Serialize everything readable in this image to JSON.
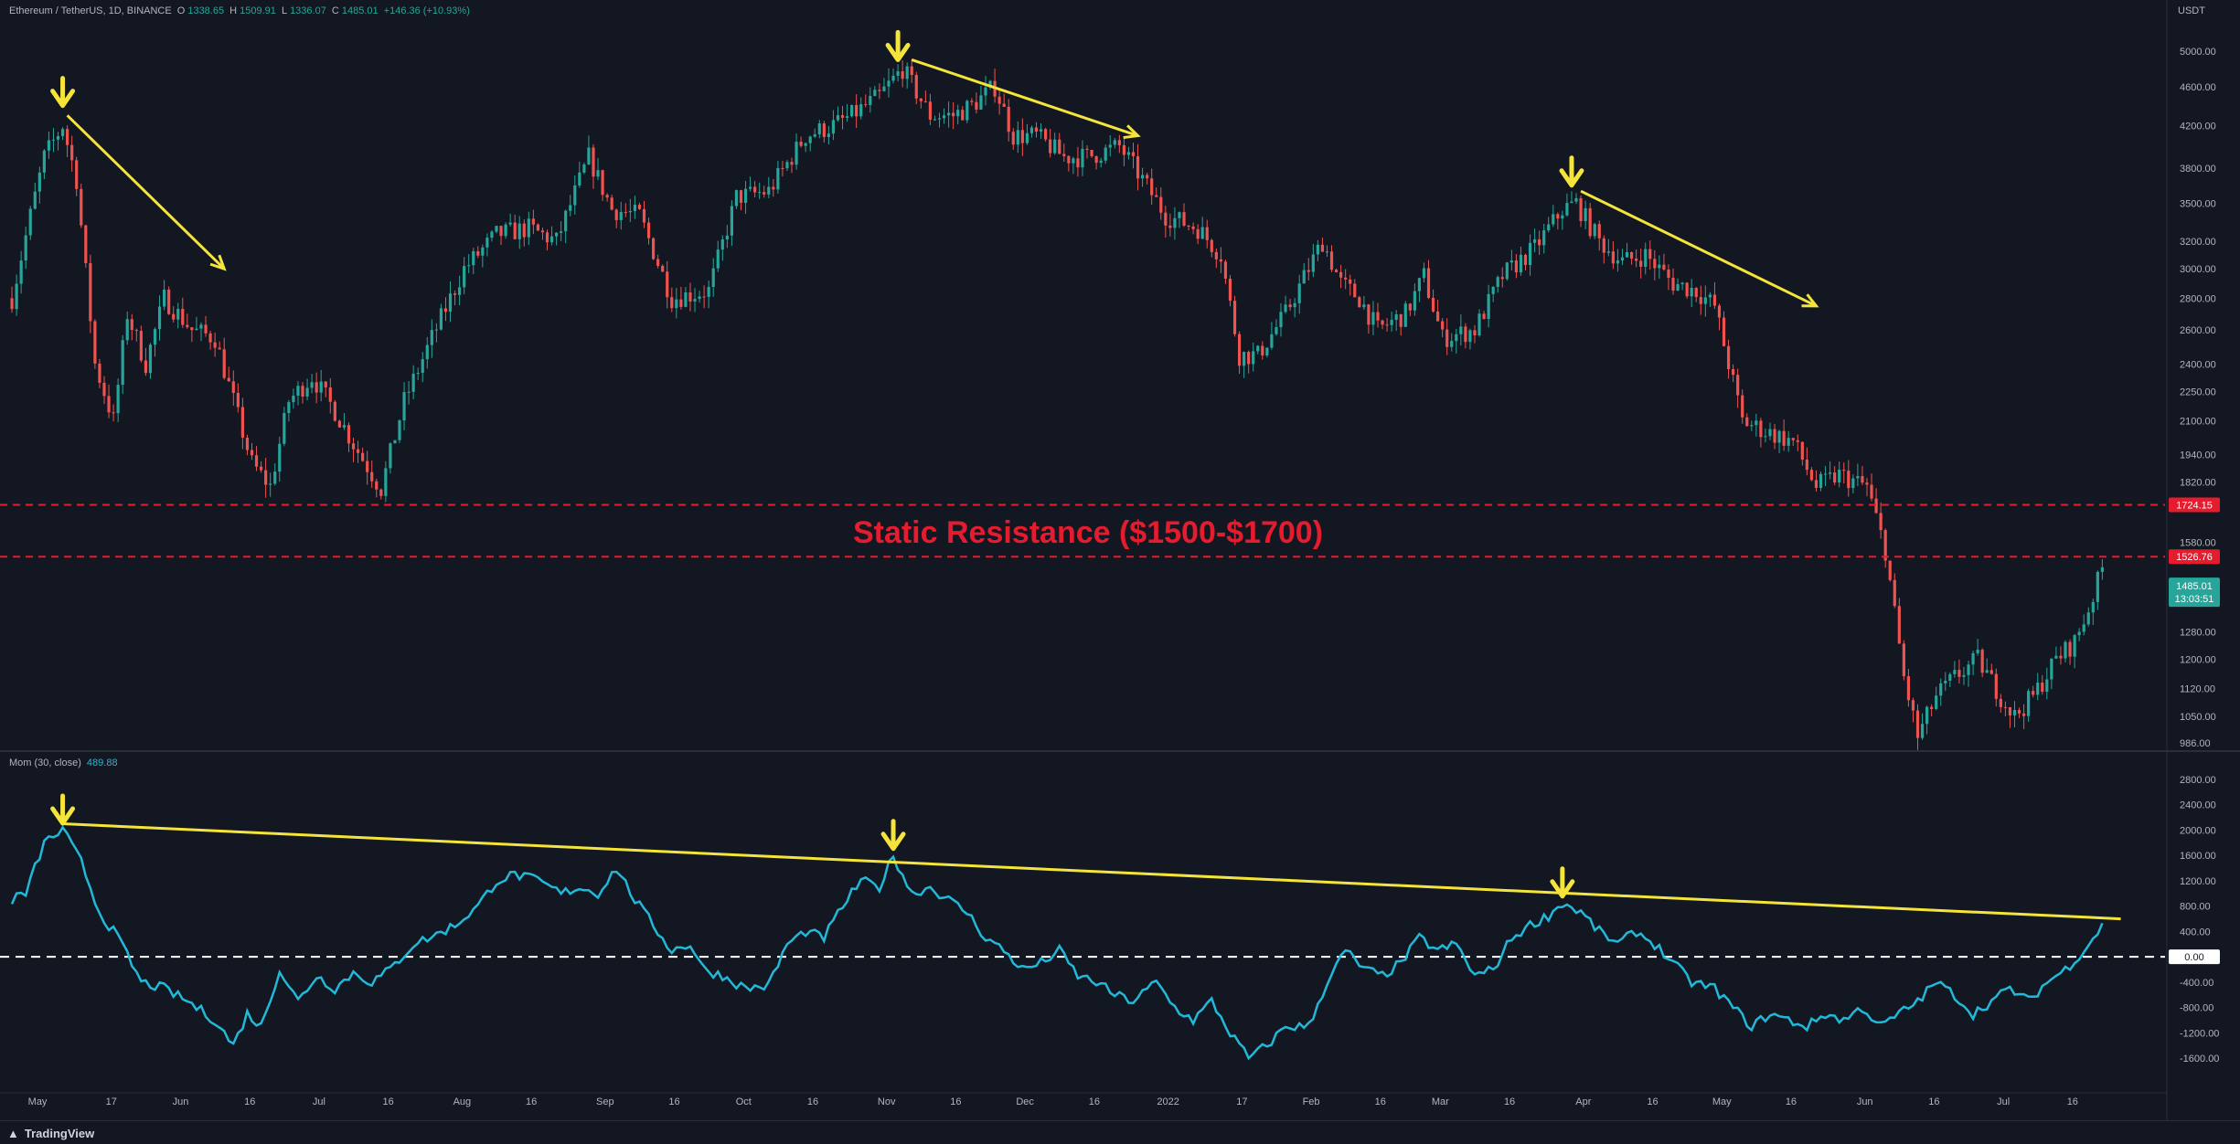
{
  "header": {
    "symbol": "Ethereum / TetherUS, 1D, BINANCE",
    "open_label": "O",
    "open": "1338.65",
    "high_label": "H",
    "high": "1509.91",
    "low_label": "L",
    "low": "1336.07",
    "close_label": "C",
    "close": "1485.01",
    "change": "+146.36 (+10.93%)"
  },
  "indicator": {
    "name": "Mom (30, close)",
    "value": "489.88"
  },
  "currency": "USDT",
  "annotation": {
    "text": "Static Resistance ($1500-$1700)"
  },
  "price_badges": {
    "r1": "1724.15",
    "r2": "1526.76",
    "last": "1485.01",
    "countdown": "13:03:51"
  },
  "mom_badge": "0.00",
  "brand": "TradingView",
  "colors": {
    "background": "#131722",
    "up": "#26a69a",
    "down": "#ef5350",
    "momentum": "#22b8d8",
    "trendline": "#f5e43a",
    "resistance": "#e41c2e"
  },
  "chart_data": [
    {
      "type": "candlestick",
      "title": "Ethereum / TetherUS, 1D, BINANCE",
      "ylabel": "USDT",
      "y_scale": "log",
      "ylim": [
        980,
        5000
      ],
      "y_ticks": [
        "5000.00",
        "4600.00",
        "4200.00",
        "3800.00",
        "3500.00",
        "3200.00",
        "3000.00",
        "2800.00",
        "2600.00",
        "2400.00",
        "2250.00",
        "2100.00",
        "1940.00",
        "1820.00",
        "1580.00",
        "1380.00",
        "1280.00",
        "1200.00",
        "1120.00",
        "1050.00",
        "986.00"
      ],
      "x_ticks": [
        "May",
        "17",
        "Jun",
        "16",
        "Jul",
        "16",
        "Aug",
        "16",
        "Sep",
        "16",
        "Oct",
        "16",
        "Nov",
        "16",
        "Dec",
        "16",
        "2022",
        "17",
        "Feb",
        "16",
        "Mar",
        "16",
        "Apr",
        "16",
        "May",
        "16",
        "Jun",
        "16",
        "Jul",
        "16"
      ],
      "path": [
        [
          "2021-05-01",
          2800
        ],
        [
          "2021-05-05",
          3400
        ],
        [
          "2021-05-08",
          3900
        ],
        [
          "2021-05-12",
          4200
        ],
        [
          "2021-05-15",
          3700
        ],
        [
          "2021-05-19",
          2400
        ],
        [
          "2021-05-23",
          2100
        ],
        [
          "2021-05-26",
          2700
        ],
        [
          "2021-05-30",
          2400
        ],
        [
          "2021-06-03",
          2800
        ],
        [
          "2021-06-09",
          2600
        ],
        [
          "2021-06-14",
          2550
        ],
        [
          "2021-06-18",
          2200
        ],
        [
          "2021-06-22",
          1900
        ],
        [
          "2021-06-26",
          1800
        ],
        [
          "2021-06-30",
          2200
        ],
        [
          "2021-07-05",
          2330
        ],
        [
          "2021-07-10",
          2150
        ],
        [
          "2021-07-14",
          1990
        ],
        [
          "2021-07-20",
          1790
        ],
        [
          "2021-07-25",
          2200
        ],
        [
          "2021-07-31",
          2550
        ],
        [
          "2021-08-07",
          3000
        ],
        [
          "2021-08-14",
          3250
        ],
        [
          "2021-08-21",
          3300
        ],
        [
          "2021-08-27",
          3200
        ],
        [
          "2021-09-03",
          3900
        ],
        [
          "2021-09-08",
          3450
        ],
        [
          "2021-09-14",
          3400
        ],
        [
          "2021-09-21",
          2800
        ],
        [
          "2021-09-29",
          2850
        ],
        [
          "2021-10-05",
          3550
        ],
        [
          "2021-10-12",
          3600
        ],
        [
          "2021-10-20",
          4100
        ],
        [
          "2021-10-26",
          4200
        ],
        [
          "2021-10-30",
          4300
        ],
        [
          "2021-11-05",
          4500
        ],
        [
          "2021-11-10",
          4800
        ],
        [
          "2021-11-16",
          4300
        ],
        [
          "2021-11-21",
          4300
        ],
        [
          "2021-11-25",
          4400
        ],
        [
          "2021-11-30",
          4600
        ],
        [
          "2021-12-04",
          4100
        ],
        [
          "2021-12-09",
          4100
        ],
        [
          "2021-12-15",
          3900
        ],
        [
          "2021-12-20",
          3900
        ],
        [
          "2021-12-27",
          4000
        ],
        [
          "2022-01-01",
          3700
        ],
        [
          "2022-01-06",
          3400
        ],
        [
          "2022-01-13",
          3300
        ],
        [
          "2022-01-18",
          3100
        ],
        [
          "2022-01-22",
          2450
        ],
        [
          "2022-01-26",
          2450
        ],
        [
          "2022-02-01",
          2700
        ],
        [
          "2022-02-09",
          3200
        ],
        [
          "2022-02-13",
          2900
        ],
        [
          "2022-02-17",
          2800
        ],
        [
          "2022-02-21",
          2600
        ],
        [
          "2022-02-27",
          2700
        ],
        [
          "2022-03-03",
          2950
        ],
        [
          "2022-03-07",
          2550
        ],
        [
          "2022-03-14",
          2600
        ],
        [
          "2022-03-20",
          2950
        ],
        [
          "2022-03-27",
          3150
        ],
        [
          "2022-04-02",
          3450
        ],
        [
          "2022-04-05",
          3500
        ],
        [
          "2022-04-10",
          3200
        ],
        [
          "2022-04-15",
          3050
        ],
        [
          "2022-04-20",
          3100
        ],
        [
          "2022-04-26",
          2900
        ],
        [
          "2022-05-01",
          2850
        ],
        [
          "2022-05-05",
          2750
        ],
        [
          "2022-05-11",
          2100
        ],
        [
          "2022-05-16",
          2050
        ],
        [
          "2022-05-22",
          2000
        ],
        [
          "2022-05-27",
          1800
        ],
        [
          "2022-06-01",
          1850
        ],
        [
          "2022-06-07",
          1800
        ],
        [
          "2022-06-11",
          1550
        ],
        [
          "2022-06-15",
          1150
        ],
        [
          "2022-06-18",
          1000
        ],
        [
          "2022-06-22",
          1100
        ],
        [
          "2022-06-26",
          1150
        ],
        [
          "2022-07-01",
          1200
        ],
        [
          "2022-07-06",
          1100
        ],
        [
          "2022-07-09",
          1050
        ],
        [
          "2022-07-13",
          1100
        ],
        [
          "2022-07-18",
          1200
        ],
        [
          "2022-07-22",
          1250
        ],
        [
          "2022-07-25",
          1350
        ],
        [
          "2022-07-28",
          1485
        ]
      ],
      "resistance_levels": [
        1724.15,
        1526.76
      ],
      "last_price": 1485.01
    },
    {
      "type": "line",
      "title": "Mom (30, close)",
      "ylim": [
        -1800,
        2800
      ],
      "y_ticks": [
        "2800.00",
        "2400.00",
        "2000.00",
        "1600.00",
        "1200.00",
        "800.00",
        "400.00",
        "0.00",
        "-400.00",
        "-800.00",
        "-1200.00",
        "-1600.00"
      ],
      "series": [
        {
          "name": "Mom (30, close)",
          "points": [
            [
              "2021-05-01",
              900
            ],
            [
              "2021-05-04",
              1000
            ],
            [
              "2021-05-08",
              1800
            ],
            [
              "2021-05-12",
              2000
            ],
            [
              "2021-05-16",
              1500
            ],
            [
              "2021-05-20",
              700
            ],
            [
              "2021-05-24",
              300
            ],
            [
              "2021-05-29",
              -400
            ],
            [
              "2021-06-03",
              -500
            ],
            [
              "2021-06-08",
              -700
            ],
            [
              "2021-06-14",
              -1000
            ],
            [
              "2021-06-18",
              -1400
            ],
            [
              "2021-06-21",
              -900
            ],
            [
              "2021-06-24",
              -1100
            ],
            [
              "2021-06-28",
              -200
            ],
            [
              "2021-07-02",
              -700
            ],
            [
              "2021-07-06",
              -300
            ],
            [
              "2021-07-10",
              -500
            ],
            [
              "2021-07-14",
              -250
            ],
            [
              "2021-07-18",
              -400
            ],
            [
              "2021-07-22",
              -200
            ],
            [
              "2021-07-27",
              200
            ],
            [
              "2021-08-01",
              350
            ],
            [
              "2021-08-05",
              500
            ],
            [
              "2021-08-10",
              800
            ],
            [
              "2021-08-14",
              1200
            ],
            [
              "2021-08-18",
              1300
            ],
            [
              "2021-08-23",
              1200
            ],
            [
              "2021-08-28",
              1000
            ],
            [
              "2021-09-01",
              1100
            ],
            [
              "2021-09-05",
              1000
            ],
            [
              "2021-09-09",
              1400
            ],
            [
              "2021-09-13",
              900
            ],
            [
              "2021-09-17",
              500
            ],
            [
              "2021-09-21",
              100
            ],
            [
              "2021-09-25",
              200
            ],
            [
              "2021-09-28",
              -200
            ],
            [
              "2021-10-02",
              -300
            ],
            [
              "2021-10-07",
              -500
            ],
            [
              "2021-10-12",
              -450
            ],
            [
              "2021-10-16",
              200
            ],
            [
              "2021-10-20",
              400
            ],
            [
              "2021-10-24",
              300
            ],
            [
              "2021-10-28",
              800
            ],
            [
              "2021-11-01",
              1200
            ],
            [
              "2021-11-05",
              1100
            ],
            [
              "2021-11-08",
              1600
            ],
            [
              "2021-11-12",
              1000
            ],
            [
              "2021-11-16",
              1100
            ],
            [
              "2021-11-20",
              900
            ],
            [
              "2021-11-24",
              700
            ],
            [
              "2021-11-28",
              300
            ],
            [
              "2021-12-02",
              100
            ],
            [
              "2021-12-06",
              -200
            ],
            [
              "2021-12-10",
              -100
            ],
            [
              "2021-12-14",
              100
            ],
            [
              "2021-12-18",
              -300
            ],
            [
              "2021-12-22",
              -400
            ],
            [
              "2021-12-26",
              -600
            ],
            [
              "2021-12-30",
              -700
            ],
            [
              "2022-01-04",
              -400
            ],
            [
              "2022-01-08",
              -800
            ],
            [
              "2022-01-12",
              -1000
            ],
            [
              "2022-01-16",
              -700
            ],
            [
              "2022-01-20",
              -1200
            ],
            [
              "2022-01-24",
              -1600
            ],
            [
              "2022-01-28",
              -1400
            ],
            [
              "2022-02-01",
              -1100
            ],
            [
              "2022-02-06",
              -1100
            ],
            [
              "2022-02-10",
              -400
            ],
            [
              "2022-02-14",
              100
            ],
            [
              "2022-02-18",
              -200
            ],
            [
              "2022-02-22",
              -300
            ],
            [
              "2022-02-26",
              -100
            ],
            [
              "2022-03-02",
              300
            ],
            [
              "2022-03-06",
              100
            ],
            [
              "2022-03-10",
              200
            ],
            [
              "2022-03-14",
              -300
            ],
            [
              "2022-03-18",
              -200
            ],
            [
              "2022-03-22",
              300
            ],
            [
              "2022-03-26",
              500
            ],
            [
              "2022-03-30",
              650
            ],
            [
              "2022-04-02",
              850
            ],
            [
              "2022-04-06",
              700
            ],
            [
              "2022-04-10",
              400
            ],
            [
              "2022-04-14",
              200
            ],
            [
              "2022-04-18",
              400
            ],
            [
              "2022-04-22",
              200
            ],
            [
              "2022-04-26",
              -100
            ],
            [
              "2022-04-30",
              -400
            ],
            [
              "2022-05-05",
              -500
            ],
            [
              "2022-05-09",
              -800
            ],
            [
              "2022-05-13",
              -1100
            ],
            [
              "2022-05-17",
              -900
            ],
            [
              "2022-05-21",
              -1000
            ],
            [
              "2022-05-25",
              -1100
            ],
            [
              "2022-05-29",
              -900
            ],
            [
              "2022-06-02",
              -1000
            ],
            [
              "2022-06-06",
              -800
            ],
            [
              "2022-06-10",
              -1100
            ],
            [
              "2022-06-14",
              -900
            ],
            [
              "2022-06-18",
              -700
            ],
            [
              "2022-06-22",
              -400
            ],
            [
              "2022-06-26",
              -600
            ],
            [
              "2022-06-30",
              -900
            ],
            [
              "2022-07-04",
              -700
            ],
            [
              "2022-07-08",
              -500
            ],
            [
              "2022-07-12",
              -700
            ],
            [
              "2022-07-16",
              -400
            ],
            [
              "2022-07-20",
              -200
            ],
            [
              "2022-07-24",
              100
            ],
            [
              "2022-07-28",
              490
            ]
          ]
        }
      ],
      "zero_line": 0,
      "last_value": 489.88
    }
  ],
  "markers": {
    "price_arrows_down": [
      [
        "2021-05-12",
        4400
      ],
      [
        "2021-11-09",
        4900
      ],
      [
        "2022-04-04",
        3650
      ]
    ],
    "mom_arrows_down": [
      [
        "2021-05-12",
        2050
      ],
      [
        "2021-11-08",
        1650
      ],
      [
        "2022-04-02",
        900
      ]
    ],
    "price_trendlines": [
      [
        [
          "2021-05-13",
          4300
        ],
        [
          "2021-06-16",
          3000
        ]
      ],
      [
        [
          "2021-11-12",
          4900
        ],
        [
          "2021-12-31",
          4100
        ]
      ],
      [
        [
          "2022-04-06",
          3600
        ],
        [
          "2022-05-27",
          2750
        ]
      ]
    ],
    "mom_trendline": [
      [
        "2021-05-12",
        2100
      ],
      [
        "2022-08-01",
        600
      ]
    ]
  }
}
